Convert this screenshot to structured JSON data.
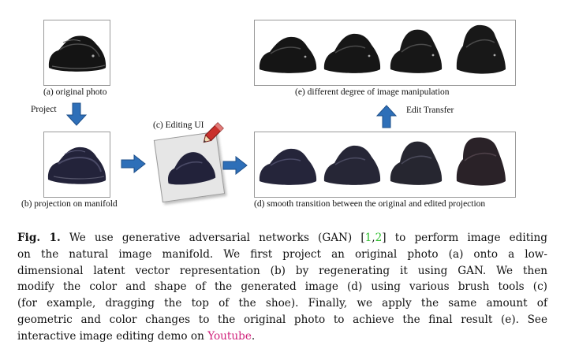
{
  "labels": {
    "a": "(a) original photo",
    "b": "(b) projection on manifold",
    "c": "(c) Editing UI",
    "d": "(d) smooth transition between the original and edited projection",
    "e": "(e) different degree of image manipulation",
    "project": "Project",
    "edit_transfer": "Edit Transfer"
  },
  "caption": {
    "fig_label": "Fig. 1.",
    "line1_pre": "We use generative adversarial networks (GAN) [",
    "cite1": "1",
    "cite_sep": ",",
    "cite2": "2",
    "line1_post": "] to perform image editing",
    "line2": "on the natural image manifold. We first project an original photo (a) onto a low-",
    "line3": "dimensional latent vector representation (b) by regenerating it using GAN. We then",
    "line4": "modify the color and shape of the generated image (d) using various brush tools (c)",
    "line5": "(for example, dragging the top of the shoe). Finally, we apply the same amount of",
    "line6": "geometric and color changes to the original photo to achieve the final result (e). See",
    "line7_pre": "interactive image editing demo on ",
    "youtube": "Youtube",
    "line7_post": "."
  },
  "colors": {
    "arrow": "#2e6fb8",
    "arrow_edge": "#1d4f8a",
    "shoe_black": "#1a1a1a",
    "shoe_navy": "#2a2a3e",
    "citation": "#2fbf2f",
    "link": "#d0207a"
  }
}
